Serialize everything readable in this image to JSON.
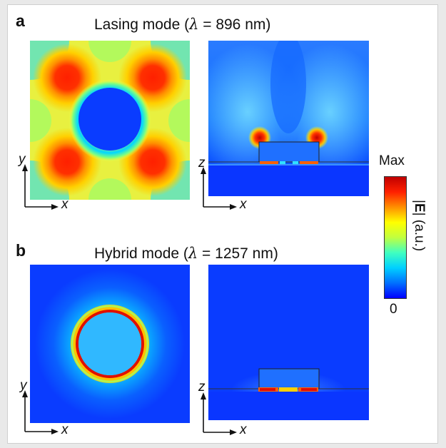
{
  "panels": {
    "a": {
      "letter": "a",
      "title_prefix": "Lasing mode (",
      "title_lambda": "λ",
      "title_suffix": " = 896 nm)",
      "left_axes": {
        "vertical": "y",
        "horizontal": "x"
      },
      "right_axes": {
        "vertical": "z",
        "horizontal": "x"
      }
    },
    "b": {
      "letter": "b",
      "title_prefix": "Hybrid mode (",
      "title_lambda": "λ",
      "title_suffix": " = 1257 nm)",
      "left_axes": {
        "vertical": "y",
        "horizontal": "x"
      },
      "right_axes": {
        "vertical": "z",
        "horizontal": "x"
      }
    }
  },
  "colorbar": {
    "max_label": "Max",
    "min_label": "0",
    "title_bold": "E",
    "title_suffix": "| (a.u.)",
    "title_prefix": "|",
    "colormap": [
      "#0000ff",
      "#0070ff",
      "#00d0ff",
      "#40ffc0",
      "#c0ff40",
      "#ffff00",
      "#ff9000",
      "#ff2000",
      "#c00000"
    ]
  }
}
